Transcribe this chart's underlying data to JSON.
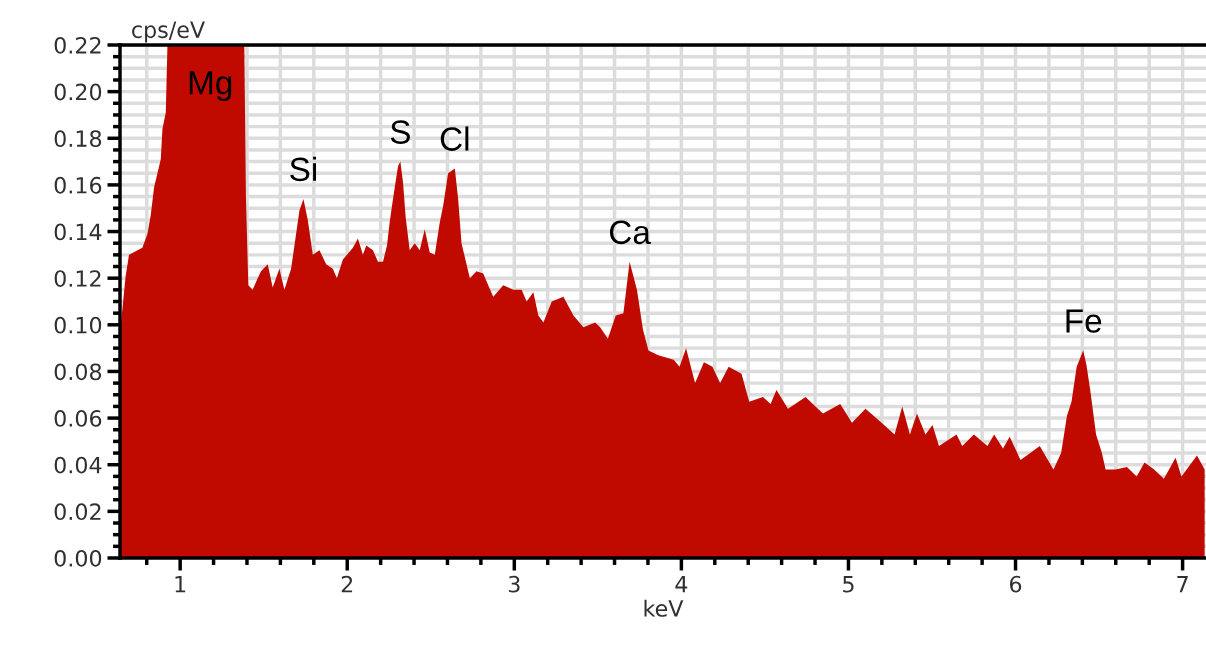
{
  "chart_data": {
    "type": "area",
    "xlabel": "keV",
    "ylabel": "cps/eV",
    "x": [
      0.645,
      0.674,
      0.694,
      0.774,
      0.804,
      0.824,
      0.844,
      0.864,
      0.884,
      0.894,
      0.914,
      0.924,
      1.384,
      1.394,
      1.408,
      1.434,
      1.464,
      1.484,
      1.524,
      1.554,
      1.594,
      1.624,
      1.664,
      1.714,
      1.738,
      1.764,
      1.794,
      1.834,
      1.874,
      1.914,
      1.938,
      1.974,
      2.034,
      2.064,
      2.094,
      2.114,
      2.154,
      2.184,
      2.214,
      2.238,
      2.254,
      2.278,
      2.304,
      2.318,
      2.334,
      2.35,
      2.374,
      2.404,
      2.434,
      2.464,
      2.494,
      2.524,
      2.554,
      2.574,
      2.604,
      2.644,
      2.664,
      2.684,
      2.714,
      2.734,
      2.774,
      2.814,
      2.844,
      2.874,
      2.934,
      2.994,
      3.044,
      3.074,
      3.114,
      3.144,
      3.174,
      3.224,
      3.294,
      3.354,
      3.414,
      3.484,
      3.514,
      3.56,
      3.607,
      3.653,
      3.69,
      3.734,
      3.77,
      3.803,
      3.862,
      3.954,
      3.989,
      4.028,
      4.082,
      4.135,
      4.186,
      4.232,
      4.283,
      4.36,
      4.406,
      4.488,
      4.534,
      4.569,
      4.638,
      4.743,
      4.847,
      4.951,
      5.021,
      5.102,
      5.183,
      5.276,
      5.322,
      5.368,
      5.41,
      5.461,
      5.503,
      5.542,
      5.647,
      5.681,
      5.751,
      5.832,
      5.872,
      5.925,
      5.965,
      6.03,
      6.088,
      6.145,
      6.227,
      6.273,
      6.308,
      6.335,
      6.366,
      6.405,
      6.424,
      6.447,
      6.482,
      6.517,
      6.539,
      6.598,
      6.667,
      6.725,
      6.772,
      6.83,
      6.888,
      6.958,
      6.993,
      7.086,
      7.132
    ],
    "series": [
      {
        "color": "#c00a00",
        "values": [
          0.1,
          0.121,
          0.13,
          0.133,
          0.139,
          0.147,
          0.159,
          0.165,
          0.171,
          0.184,
          0.191,
          0.22,
          0.22,
          0.154,
          0.117,
          0.115,
          0.12,
          0.123,
          0.126,
          0.116,
          0.124,
          0.115,
          0.124,
          0.149,
          0.154,
          0.145,
          0.13,
          0.132,
          0.126,
          0.124,
          0.12,
          0.128,
          0.133,
          0.137,
          0.13,
          0.134,
          0.132,
          0.127,
          0.127,
          0.134,
          0.144,
          0.156,
          0.168,
          0.17,
          0.161,
          0.146,
          0.132,
          0.135,
          0.132,
          0.141,
          0.131,
          0.13,
          0.144,
          0.151,
          0.165,
          0.167,
          0.154,
          0.135,
          0.126,
          0.12,
          0.123,
          0.122,
          0.117,
          0.112,
          0.117,
          0.115,
          0.115,
          0.11,
          0.114,
          0.104,
          0.101,
          0.11,
          0.112,
          0.104,
          0.099,
          0.101,
          0.099,
          0.094,
          0.104,
          0.105,
          0.127,
          0.115,
          0.098,
          0.089,
          0.087,
          0.085,
          0.082,
          0.09,
          0.075,
          0.084,
          0.082,
          0.075,
          0.082,
          0.079,
          0.067,
          0.069,
          0.066,
          0.072,
          0.064,
          0.069,
          0.062,
          0.066,
          0.058,
          0.064,
          0.059,
          0.053,
          0.065,
          0.053,
          0.062,
          0.053,
          0.057,
          0.048,
          0.053,
          0.048,
          0.053,
          0.048,
          0.053,
          0.047,
          0.052,
          0.042,
          0.045,
          0.048,
          0.038,
          0.045,
          0.061,
          0.067,
          0.082,
          0.089,
          0.083,
          0.072,
          0.053,
          0.045,
          0.038,
          0.038,
          0.039,
          0.035,
          0.041,
          0.038,
          0.034,
          0.043,
          0.035,
          0.044,
          0.038
        ]
      }
    ],
    "xlim": [
      0.64,
      7.14
    ],
    "xticks": [
      1,
      2,
      3,
      4,
      5,
      6,
      7
    ],
    "ylim": [
      0,
      0.22
    ],
    "yticks": [
      {
        "value": 0,
        "label": "0.00"
      },
      {
        "value": 0.02,
        "label": "0.02"
      },
      {
        "value": 0.04,
        "label": "0.04"
      },
      {
        "value": 0.06,
        "label": "0.06"
      },
      {
        "value": 0.08,
        "label": "0.08"
      },
      {
        "value": 0.1,
        "label": "0.10"
      },
      {
        "value": 0.12,
        "label": "0.12"
      },
      {
        "value": 0.14,
        "label": "0.14"
      },
      {
        "value": 0.16,
        "label": "0.16"
      },
      {
        "value": 0.18,
        "label": "0.18"
      },
      {
        "value": 0.2,
        "label": "0.20"
      },
      {
        "value": 0.22,
        "label": "0.22"
      }
    ],
    "grid": true,
    "annotations": [
      {
        "text": "Mg",
        "x": 1.18,
        "y": 0.22
      },
      {
        "text": "Si",
        "x": 1.738,
        "y": 0.154
      },
      {
        "text": "S",
        "x": 2.318,
        "y": 0.17
      },
      {
        "text": "Cl",
        "x": 2.644,
        "y": 0.167
      },
      {
        "text": "Ca",
        "x": 3.69,
        "y": 0.127
      },
      {
        "text": "Fe",
        "x": 6.405,
        "y": 0.089
      }
    ]
  }
}
